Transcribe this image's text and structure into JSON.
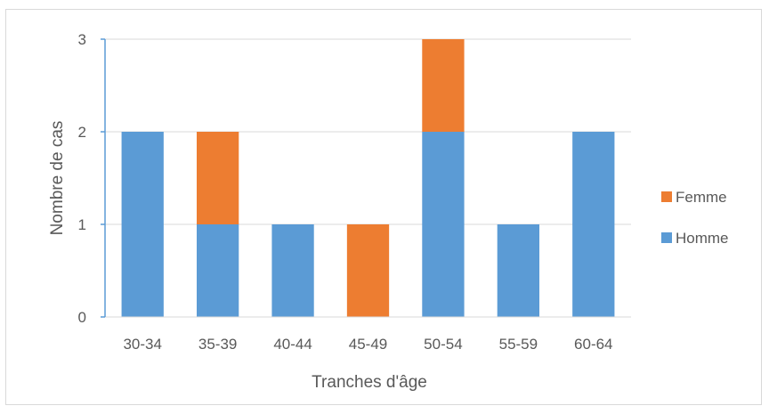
{
  "chart_data": {
    "type": "bar",
    "stacked": true,
    "title": "",
    "xlabel": "Tranches d'âge",
    "ylabel": "Nombre de cas",
    "categories": [
      "30-34",
      "35-39",
      "40-44",
      "45-49",
      "50-54",
      "55-59",
      "60-64"
    ],
    "series": [
      {
        "name": "Homme",
        "values": [
          2,
          1,
          1,
          0,
          2,
          1,
          2
        ],
        "color": "#5b9bd5"
      },
      {
        "name": "Femme",
        "values": [
          0,
          1,
          0,
          1,
          1,
          0,
          0
        ],
        "color": "#ed7d31"
      }
    ],
    "ylim": [
      0,
      3
    ],
    "yticks": [
      0,
      1,
      2,
      3
    ],
    "grid": true,
    "legend": "right",
    "legend_order": [
      "Femme",
      "Homme"
    ]
  }
}
